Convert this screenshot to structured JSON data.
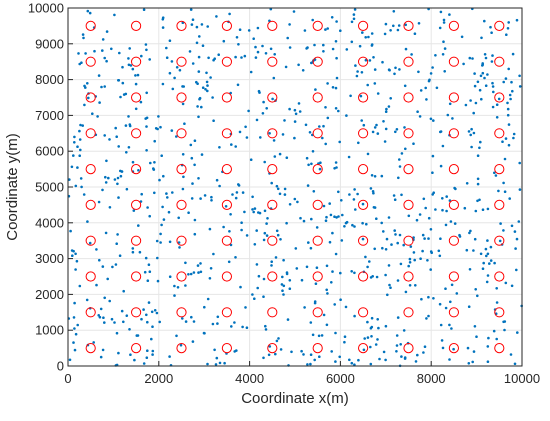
{
  "chart_data": {
    "type": "scatter",
    "xlabel": "Coordinate x(m)",
    "ylabel": "Coordinate y(m)",
    "xlim": [
      0,
      10000
    ],
    "ylim": [
      0,
      10000
    ],
    "x_ticks": [
      "0",
      "2000",
      "4000",
      "6000",
      "8000",
      "10000"
    ],
    "y_ticks": [
      "0",
      "1000",
      "2000",
      "3000",
      "4000",
      "5000",
      "6000",
      "7000",
      "8000",
      "9000",
      "10000"
    ],
    "grid": true,
    "series": [
      {
        "marker": "open-circle",
        "color": "#ff0000",
        "x": [
          500,
          1500,
          2500,
          3500,
          4500,
          5500,
          6500,
          7500,
          8500,
          9500
        ],
        "y": [
          500,
          1500,
          2500,
          3500,
          4500,
          5500,
          6500,
          7500,
          8500,
          9500
        ]
      },
      {
        "marker": "dot",
        "color": "#0072bd",
        "count": 1000,
        "x_range": [
          0,
          10000
        ],
        "y_range": [
          0,
          10000
        ]
      }
    ]
  }
}
